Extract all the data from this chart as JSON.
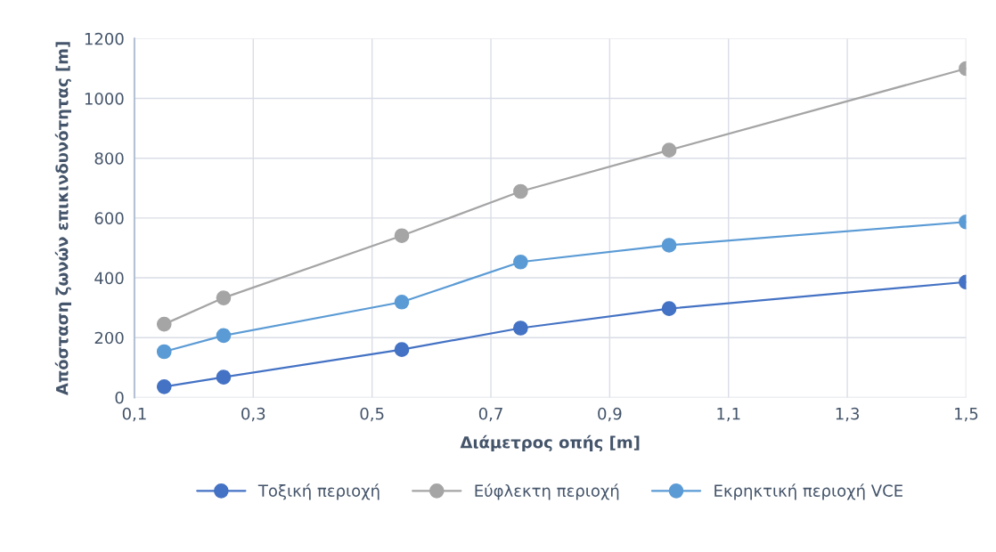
{
  "chart_data": {
    "type": "line",
    "xlabel": "Διάμετρος οπής [m]",
    "ylabel": "Απόσταση ζωνών επικινδυνότητας [m]",
    "x": [
      0.15,
      0.25,
      0.55,
      0.75,
      1.0,
      1.5
    ],
    "series": [
      {
        "name": "Τοξική περιοχή",
        "color": "#4472c4",
        "values": [
          36,
          68,
          160,
          232,
          297,
          386
        ]
      },
      {
        "name": "Εύφλεκτη περιοχή",
        "color": "#a5a5a5",
        "values": [
          245,
          333,
          541,
          689,
          827,
          1100
        ]
      },
      {
        "name": "Εκρηκτική περιοχή VCE",
        "color": "#5b9bd5",
        "values": [
          153,
          207,
          319,
          453,
          509,
          587
        ]
      }
    ],
    "xlim": [
      0.1,
      1.5
    ],
    "xticks": [
      {
        "value": 0.1,
        "label": "0,1"
      },
      {
        "value": 0.3,
        "label": "0,3"
      },
      {
        "value": 0.5,
        "label": "0,5"
      },
      {
        "value": 0.7,
        "label": "0,7"
      },
      {
        "value": 0.9,
        "label": "0,9"
      },
      {
        "value": 1.1,
        "label": "1,1"
      },
      {
        "value": 1.3,
        "label": "1,3"
      },
      {
        "value": 1.5,
        "label": "1,5"
      }
    ],
    "ylim": [
      0,
      1200
    ],
    "yticks": [
      0,
      200,
      400,
      600,
      800,
      1000,
      1200
    ],
    "grid": true,
    "legend": "bottom",
    "marker": "circle",
    "line_style": "solid"
  }
}
